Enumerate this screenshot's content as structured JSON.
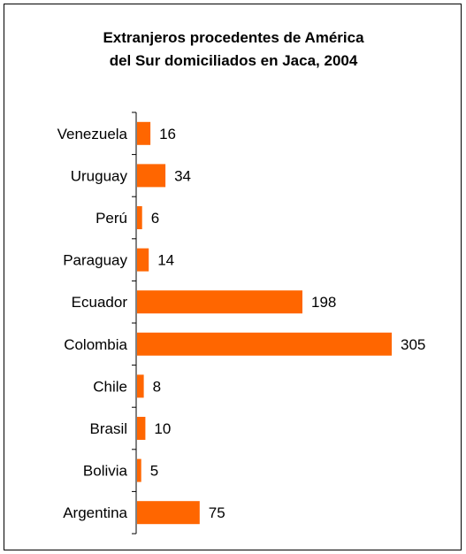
{
  "chart_data": {
    "type": "bar",
    "orientation": "horizontal",
    "title_lines": [
      "Extranjeros procedentes de América",
      "del Sur domiciliados en Jaca, 2004"
    ],
    "categories": [
      "Venezuela",
      "Uruguay",
      "Perú",
      "Paraguay",
      "Ecuador",
      "Colombia",
      "Chile",
      "Brasil",
      "Bolivia",
      "Argentina"
    ],
    "values": [
      16,
      34,
      6,
      14,
      198,
      305,
      8,
      10,
      5,
      75
    ],
    "value_labels": [
      "16",
      "34",
      "6",
      "14",
      "198",
      "305",
      "8",
      "10",
      "5",
      "75"
    ],
    "bar_color": "#ff6600",
    "grid": false,
    "legend": "none"
  }
}
